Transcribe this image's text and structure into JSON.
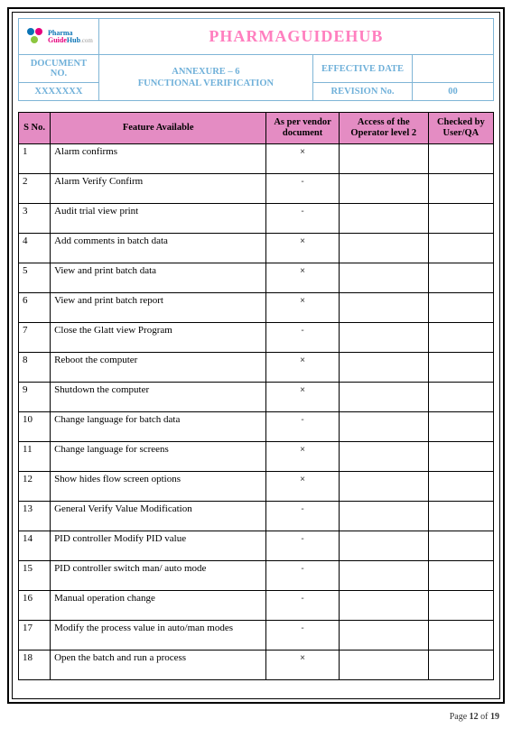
{
  "brand": "PHARMAGUIDEHUB",
  "logo": {
    "line1": "Pharma",
    "line2a": "Guide",
    "line2b": "Hub",
    "suffix": ".com"
  },
  "header": {
    "doc_no_label": "DOCUMENT NO.",
    "doc_no_val": "XXXXXXX",
    "annex_line1": "ANNEXURE – 6",
    "annex_line2": "FUNCTIONAL VERIFICATION",
    "eff_label": "EFFECTIVE DATE",
    "eff_val": "",
    "rev_label": "REVISION No.",
    "rev_val": "00"
  },
  "columns": {
    "sno": "S No.",
    "feature": "Feature Available",
    "vendor": "As per vendor document",
    "operator": "Access of the Operator level 2",
    "qa": "Checked by User/QA"
  },
  "rows": [
    {
      "sno": "1",
      "feature": "Alarm confirms",
      "vendor": "×",
      "op": "",
      "qa": ""
    },
    {
      "sno": "2",
      "feature": "Alarm Verify Confirm",
      "vendor": "-",
      "op": "",
      "qa": ""
    },
    {
      "sno": "3",
      "feature": "Audit trial view print",
      "vendor": "-",
      "op": "",
      "qa": ""
    },
    {
      "sno": "4",
      "feature": "Add comments in batch data",
      "vendor": "×",
      "op": "",
      "qa": ""
    },
    {
      "sno": "5",
      "feature": "View and print batch data",
      "vendor": "×",
      "op": "",
      "qa": ""
    },
    {
      "sno": "6",
      "feature": "View and print batch report",
      "vendor": "×",
      "op": "",
      "qa": ""
    },
    {
      "sno": "7",
      "feature": "Close the Glatt view Program",
      "vendor": "-",
      "op": "",
      "qa": ""
    },
    {
      "sno": "8",
      "feature": "Reboot the computer",
      "vendor": "×",
      "op": "",
      "qa": ""
    },
    {
      "sno": "9",
      "feature": "Shutdown the computer",
      "vendor": "×",
      "op": "",
      "qa": ""
    },
    {
      "sno": "10",
      "feature": "Change language for batch data",
      "vendor": "-",
      "op": "",
      "qa": ""
    },
    {
      "sno": "11",
      "feature": "Change language for screens",
      "vendor": "×",
      "op": "",
      "qa": ""
    },
    {
      "sno": "12",
      "feature": "Show hides flow screen options",
      "vendor": "×",
      "op": "",
      "qa": ""
    },
    {
      "sno": "13",
      "feature": "General Verify Value Modification",
      "vendor": "-",
      "op": "",
      "qa": ""
    },
    {
      "sno": "14",
      "feature": "PID controller Modify PID value",
      "vendor": "-",
      "op": "",
      "qa": ""
    },
    {
      "sno": "15",
      "feature": "PID controller switch man/ auto mode",
      "vendor": "-",
      "op": "",
      "qa": ""
    },
    {
      "sno": "16",
      "feature": " Manual operation change",
      "vendor": "-",
      "op": "",
      "qa": ""
    },
    {
      "sno": "17",
      "feature": "Modify the process value in auto/man modes",
      "vendor": "-",
      "op": "",
      "qa": ""
    },
    {
      "sno": "18",
      "feature": "Open the batch and run a process",
      "vendor": "×",
      "op": "",
      "qa": ""
    }
  ],
  "footer": {
    "prefix": "Page ",
    "page": "12",
    "of": " of ",
    "total": "19"
  },
  "colors": {
    "header_border": "#7fb5d6",
    "header_text": "#6fb0d9",
    "brand_text": "#ff7fbf",
    "table_header_bg": "#e48cc3"
  }
}
